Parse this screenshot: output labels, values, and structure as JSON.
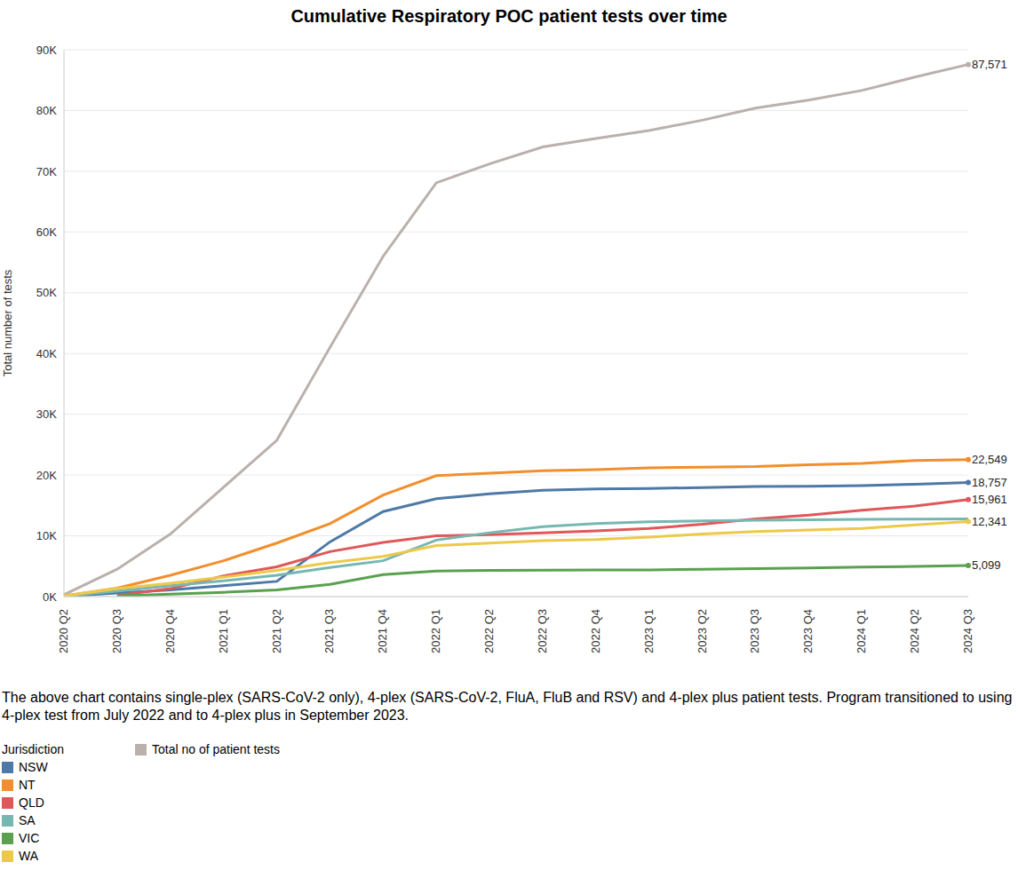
{
  "chart_data": {
    "type": "line",
    "title": "Cumulative Respiratory POC patient tests over time",
    "y_label": "Total number of tests",
    "categories": [
      "2020 Q2",
      "2020 Q3",
      "2020 Q4",
      "2021 Q1",
      "2021 Q2",
      "2021 Q3",
      "2021 Q4",
      "2022 Q1",
      "2022 Q2",
      "2022 Q3",
      "2022 Q4",
      "2023 Q1",
      "2023 Q2",
      "2023 Q3",
      "2023 Q4",
      "2024 Q1",
      "2024 Q2",
      "2024 Q3"
    ],
    "ylim": [
      0,
      90000
    ],
    "yticks": [
      {
        "value": 0,
        "label": "0K"
      },
      {
        "value": 10000,
        "label": "10K"
      },
      {
        "value": 20000,
        "label": "20K"
      },
      {
        "value": 30000,
        "label": "30K"
      },
      {
        "value": 40000,
        "label": "40K"
      },
      {
        "value": 50000,
        "label": "50K"
      },
      {
        "value": 60000,
        "label": "60K"
      },
      {
        "value": 70000,
        "label": "70K"
      },
      {
        "value": 80000,
        "label": "80K"
      },
      {
        "value": 90000,
        "label": "90K"
      }
    ],
    "grid": true,
    "legend": "bottom",
    "legend_title": "Jurisdiction",
    "footnote": "The above chart contains single-plex (SARS-CoV-2 only), 4-plex (SARS-CoV-2, FluA, FluB and RSV) and 4-plex plus patient tests. Program transitioned to using 4-plex test from July 2022 and to 4-plex plus in September 2023.",
    "series": [
      {
        "name": "Total no of patient tests",
        "color": "#bab0ac",
        "values": [
          300,
          4500,
          10300,
          18000,
          25700,
          41000,
          56000,
          68100,
          71200,
          74000,
          75400,
          76700,
          78400,
          80400,
          81700,
          83300,
          85500,
          87571
        ],
        "value_labels": [
          null,
          null,
          null,
          null,
          null,
          null,
          null,
          null,
          null,
          null,
          null,
          null,
          null,
          null,
          null,
          null,
          null,
          "87,571"
        ]
      },
      {
        "name": "NSW",
        "color": "#4e79a7",
        "values": [
          50,
          600,
          1100,
          1800,
          2500,
          9000,
          14000,
          16100,
          16900,
          17500,
          17700,
          17800,
          17950,
          18100,
          18150,
          18250,
          18500,
          18757
        ],
        "value_labels": [
          null,
          null,
          null,
          null,
          null,
          null,
          null,
          null,
          null,
          null,
          null,
          null,
          null,
          null,
          null,
          null,
          null,
          "18,757"
        ]
      },
      {
        "name": "NT",
        "color": "#f28e2b",
        "values": [
          100,
          1400,
          3500,
          5900,
          8800,
          12000,
          16700,
          19900,
          20300,
          20700,
          20900,
          21200,
          21300,
          21400,
          21700,
          21900,
          22400,
          22549
        ],
        "value_labels": [
          null,
          null,
          null,
          null,
          null,
          null,
          null,
          null,
          null,
          null,
          null,
          null,
          null,
          null,
          null,
          null,
          null,
          "22,549"
        ]
      },
      {
        "name": "QLD",
        "color": "#e15759",
        "values": [
          null,
          200,
          1300,
          3400,
          4900,
          7400,
          8900,
          10000,
          10200,
          10500,
          10800,
          11200,
          11900,
          12800,
          13400,
          14200,
          14900,
          15961
        ],
        "value_labels": [
          null,
          null,
          null,
          null,
          null,
          null,
          null,
          null,
          null,
          null,
          null,
          null,
          null,
          null,
          null,
          null,
          null,
          "15,961"
        ]
      },
      {
        "name": "SA",
        "color": "#76b7b2",
        "values": [
          50,
          900,
          1800,
          2600,
          3500,
          4800,
          5900,
          9300,
          10500,
          11500,
          12000,
          12300,
          12450,
          12550,
          12650,
          12700,
          12750,
          12800
        ]
      },
      {
        "name": "VIC",
        "color": "#59a14f",
        "values": [
          null,
          100,
          400,
          700,
          1100,
          2000,
          3600,
          4200,
          4300,
          4350,
          4400,
          4400,
          4500,
          4600,
          4700,
          4850,
          4950,
          5099
        ],
        "value_labels": [
          null,
          null,
          null,
          null,
          null,
          null,
          null,
          null,
          null,
          null,
          null,
          null,
          null,
          null,
          null,
          null,
          null,
          "5,099"
        ]
      },
      {
        "name": "WA",
        "color": "#edc948",
        "values": [
          100,
          1300,
          2200,
          3200,
          4300,
          5600,
          6600,
          8400,
          8800,
          9200,
          9400,
          9800,
          10300,
          10700,
          10950,
          11200,
          11800,
          12341
        ],
        "value_labels": [
          null,
          null,
          null,
          null,
          null,
          null,
          null,
          null,
          null,
          null,
          null,
          null,
          null,
          null,
          null,
          null,
          null,
          "12,341"
        ]
      }
    ]
  }
}
